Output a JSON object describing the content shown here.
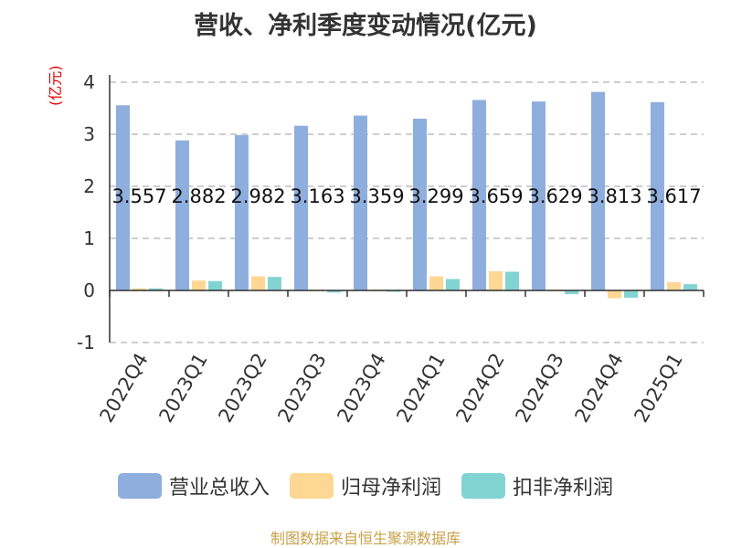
{
  "title": "营收、净利季度变动情况(亿元)",
  "unit_label": "(亿元)",
  "source": "制图数据来自恒生聚源数据库",
  "colors": {
    "revenue": "#8eaedd",
    "net_profit": "#fdd793",
    "deducted_profit": "#82d4d3",
    "grid": "#bdbdbd",
    "axis": "#333333"
  },
  "chart_data": {
    "type": "bar",
    "title": "营收、净利季度变动情况(亿元)",
    "ylabel": "(亿元)",
    "ylim": [
      -1,
      4
    ],
    "yticks": [
      -1,
      0,
      1,
      2,
      3,
      4
    ],
    "grid": true,
    "legend_position": "bottom",
    "categories": [
      "2022Q4",
      "2023Q1",
      "2023Q2",
      "2023Q3",
      "2023Q4",
      "2024Q1",
      "2024Q2",
      "2024Q3",
      "2024Q4",
      "2025Q1"
    ],
    "series": [
      {
        "name": "营业总收入",
        "values": [
          3.557,
          2.882,
          2.982,
          3.163,
          3.359,
          3.299,
          3.659,
          3.629,
          3.813,
          3.617
        ],
        "labels": [
          "3.557",
          "2.882",
          "2.982",
          "3.163",
          "3.359",
          "3.299",
          "3.659",
          "3.629",
          "3.813",
          "3.617"
        ]
      },
      {
        "name": "归母净利润",
        "values": [
          0.04,
          0.19,
          0.27,
          0.02,
          0.02,
          0.27,
          0.37,
          0.02,
          -0.15,
          0.16
        ]
      },
      {
        "name": "扣非净利润",
        "values": [
          0.04,
          0.18,
          0.26,
          -0.04,
          0.0,
          0.22,
          0.36,
          -0.07,
          -0.14,
          0.12
        ]
      }
    ]
  }
}
